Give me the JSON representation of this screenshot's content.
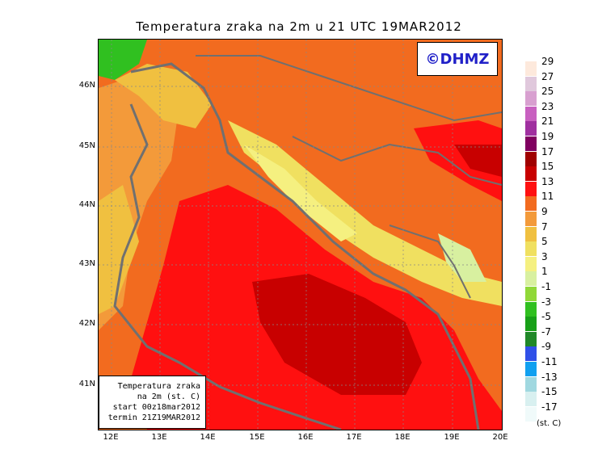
{
  "title": "Temperatura zraka na 2m u 21 UTC 19MAR2012",
  "logo_text": "©DHMZ",
  "info_box": {
    "line1": "Temperatura zraka",
    "line2": "na 2m (st. C)",
    "line3": "start 00z18mar2012",
    "line4": "termin 21Z19MAR2012"
  },
  "lat_labels": [
    "46N",
    "45N",
    "44N",
    "43N",
    "42N",
    "41N"
  ],
  "lon_labels": [
    "12E",
    "13E",
    "14E",
    "15E",
    "16E",
    "17E",
    "18E",
    "19E",
    "20E"
  ],
  "legend": {
    "units": "(st. C)",
    "levels": [
      "29",
      "27",
      "25",
      "23",
      "21",
      "19",
      "17",
      "15",
      "13",
      "11",
      "9",
      "7",
      "5",
      "3",
      "1",
      "-1",
      "-3",
      "-5",
      "-7",
      "-9",
      "-11",
      "-13",
      "-15",
      "-17"
    ],
    "colors": [
      "#fde9dc",
      "#e0c8dc",
      "#d8a0d0",
      "#c860c0",
      "#a030a0",
      "#800060",
      "#a00000",
      "#c80000",
      "#ff1010",
      "#f26b1f",
      "#f39a3a",
      "#f0c040",
      "#f0e060",
      "#f5f080",
      "#d8f0a0",
      "#90d838",
      "#30c020",
      "#18a018",
      "#208828",
      "#3050e8",
      "#10a0f0",
      "#a0d8e0",
      "#d8f0f0",
      "#f0fafa"
    ]
  },
  "map_colors": {
    "sea_hot": "#c80000",
    "sea_mid": "#ff1010",
    "land_warm": "#f26b1f",
    "land_cool": "#f39a3a",
    "mountain": "#f0e060",
    "alps": "#30c020",
    "coast": "#707070"
  }
}
